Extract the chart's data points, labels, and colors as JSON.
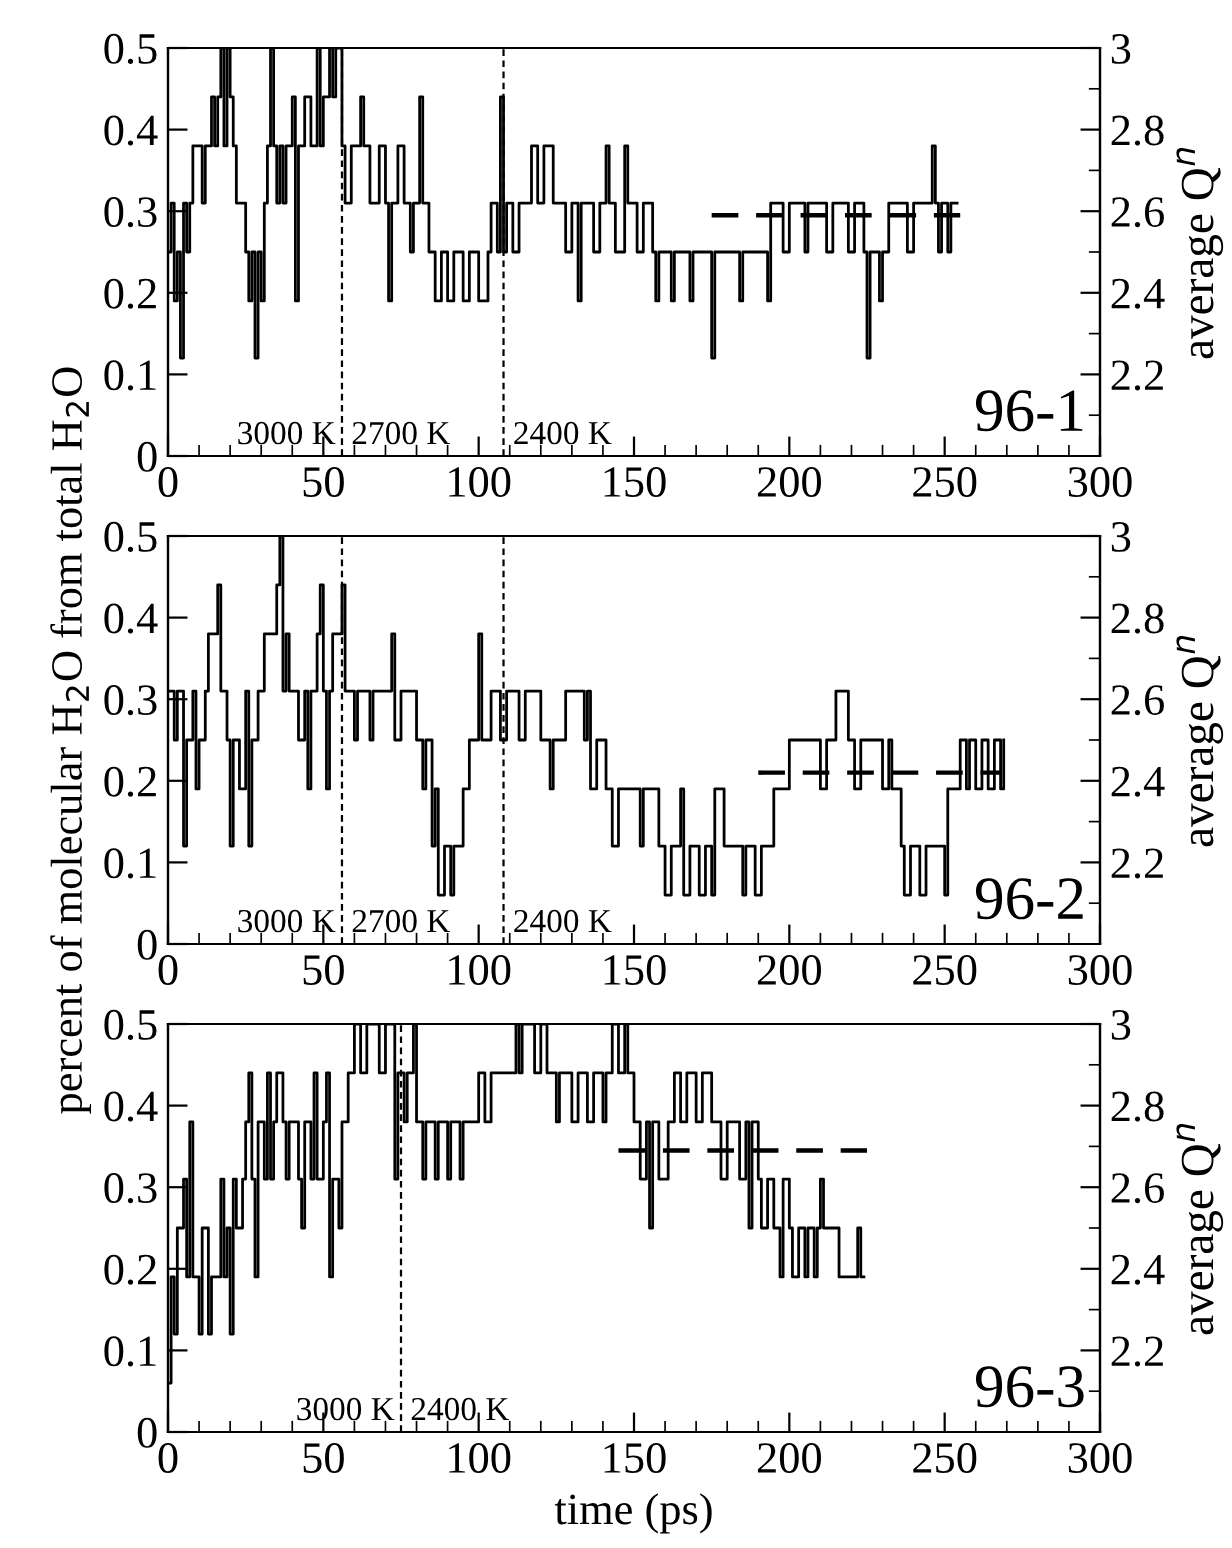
{
  "chart_data": [
    {
      "type": "step",
      "xlim": [
        0,
        300
      ],
      "xticks": [
        0,
        50,
        100,
        150,
        200,
        250,
        300
      ],
      "ylim": [
        0,
        0.5
      ],
      "yticks": [
        0,
        0.1,
        0.2,
        0.3,
        0.4,
        0.5
      ],
      "y2lim": [
        2,
        3
      ],
      "y2ticks": [
        2.2,
        2.4,
        2.6,
        2.8,
        3
      ],
      "y2label": "average Q$^{n}$",
      "grid": false,
      "legend": false,
      "series": [
        {
          "color": "#000000",
          "x": [
            0,
            1,
            2,
            3,
            4,
            5,
            6,
            7,
            8,
            11,
            12,
            14,
            15,
            16,
            17,
            18,
            19,
            20,
            21,
            22,
            24,
            25,
            26,
            27,
            28,
            29,
            30,
            31,
            32,
            33,
            34,
            35,
            36,
            37,
            38,
            40,
            41,
            42,
            44,
            46,
            48,
            49,
            50,
            52,
            53,
            54,
            56,
            57,
            59,
            62,
            63,
            65,
            68,
            70,
            71,
            72,
            74,
            76,
            78,
            79,
            81,
            82,
            84,
            86,
            88,
            90,
            92,
            95,
            97,
            100,
            103,
            104,
            106,
            107,
            108,
            109,
            111,
            113,
            117,
            119,
            121,
            124,
            128,
            130,
            132,
            133,
            137,
            139,
            141,
            142,
            144,
            147,
            148,
            151,
            153,
            156,
            157,
            158,
            162,
            163,
            168,
            169,
            175,
            176,
            184,
            185,
            193,
            194,
            198,
            200,
            205,
            206,
            212,
            214,
            219,
            221,
            224,
            225,
            226,
            229,
            230,
            232,
            238,
            240,
            246,
            247,
            248,
            249,
            251,
            252,
            254
          ],
          "values": [
            0.25,
            0.31,
            0.19,
            0.25,
            0.12,
            0.31,
            0.25,
            0.31,
            0.38,
            0.31,
            0.38,
            0.44,
            0.38,
            0.44,
            0.5,
            0.38,
            0.5,
            0.44,
            0.38,
            0.31,
            0.31,
            0.25,
            0.19,
            0.25,
            0.12,
            0.25,
            0.19,
            0.31,
            0.38,
            0.5,
            0.38,
            0.31,
            0.38,
            0.31,
            0.38,
            0.44,
            0.19,
            0.38,
            0.44,
            0.38,
            0.5,
            0.38,
            0.44,
            0.5,
            0.44,
            0.5,
            0.38,
            0.31,
            0.38,
            0.44,
            0.38,
            0.31,
            0.38,
            0.31,
            0.19,
            0.31,
            0.38,
            0.31,
            0.25,
            0.31,
            0.44,
            0.31,
            0.25,
            0.19,
            0.25,
            0.19,
            0.25,
            0.19,
            0.25,
            0.19,
            0.25,
            0.31,
            0.25,
            0.44,
            0.25,
            0.31,
            0.25,
            0.31,
            0.38,
            0.31,
            0.38,
            0.31,
            0.25,
            0.31,
            0.19,
            0.31,
            0.25,
            0.31,
            0.38,
            0.31,
            0.25,
            0.38,
            0.31,
            0.25,
            0.31,
            0.25,
            0.19,
            0.25,
            0.19,
            0.25,
            0.19,
            0.25,
            0.12,
            0.25,
            0.19,
            0.25,
            0.19,
            0.31,
            0.25,
            0.31,
            0.25,
            0.31,
            0.25,
            0.31,
            0.25,
            0.31,
            0.25,
            0.12,
            0.25,
            0.19,
            0.25,
            0.31,
            0.25,
            0.31,
            0.38,
            0.31,
            0.25,
            0.31,
            0.25,
            0.31,
            0.31
          ]
        },
        {
          "type": "line",
          "axis": "y2",
          "line_style": "dashed",
          "color": "#000000",
          "x": [
            175,
            255
          ],
          "values": [
            2.59,
            2.59
          ]
        }
      ],
      "ref_lines": [
        {
          "axis": "x",
          "value": 56,
          "line_style": "dashed",
          "color": "#000000"
        },
        {
          "axis": "x",
          "value": 108,
          "line_style": "dashed",
          "color": "#000000"
        }
      ],
      "annotations": [
        "3000 K",
        "2700 K",
        "2400 K",
        "96-1"
      ]
    },
    {
      "type": "step",
      "xlim": [
        0,
        300
      ],
      "xticks": [
        0,
        50,
        100,
        150,
        200,
        250,
        300
      ],
      "ylim": [
        0,
        0.5
      ],
      "yticks": [
        0,
        0.1,
        0.2,
        0.3,
        0.4,
        0.5
      ],
      "y2lim": [
        2,
        3
      ],
      "y2ticks": [
        2.2,
        2.4,
        2.6,
        2.8,
        3
      ],
      "ylabel": "percent of molecular H$_{2}$O from total H$_{2}$O",
      "y2label": "average Q$^{n}$",
      "grid": false,
      "legend": false,
      "series": [
        {
          "color": "#000000",
          "x": [
            0,
            2,
            3,
            5,
            6,
            8,
            9,
            10,
            12,
            13,
            16,
            17,
            19,
            20,
            21,
            23,
            25,
            26,
            27,
            29,
            31,
            35,
            36,
            37,
            38,
            39,
            42,
            44,
            45,
            46,
            48,
            49,
            50,
            51,
            52,
            53,
            56,
            57,
            60,
            61,
            65,
            66,
            72,
            73,
            75,
            80,
            82,
            83,
            85,
            86,
            87,
            89,
            91,
            92,
            95,
            97,
            100,
            101,
            104,
            107,
            109,
            113,
            115,
            120,
            123,
            124,
            128,
            134,
            135,
            136,
            138,
            141,
            143,
            145,
            152,
            153,
            158,
            160,
            162,
            165,
            166,
            168,
            171,
            173,
            175,
            176,
            179,
            185,
            186,
            189,
            191,
            195,
            200,
            210,
            212,
            215,
            219,
            221,
            223,
            230,
            232,
            233,
            236,
            237,
            239,
            242,
            244,
            250,
            251,
            255,
            257,
            258,
            260,
            262,
            264,
            266,
            268,
            269
          ],
          "values": [
            0.31,
            0.25,
            0.31,
            0.12,
            0.25,
            0.31,
            0.19,
            0.25,
            0.31,
            0.38,
            0.44,
            0.31,
            0.25,
            0.12,
            0.25,
            0.19,
            0.31,
            0.12,
            0.25,
            0.31,
            0.38,
            0.44,
            0.5,
            0.31,
            0.38,
            0.31,
            0.25,
            0.31,
            0.19,
            0.31,
            0.38,
            0.44,
            0.31,
            0.19,
            0.31,
            0.38,
            0.44,
            0.31,
            0.25,
            0.31,
            0.25,
            0.31,
            0.38,
            0.25,
            0.31,
            0.25,
            0.19,
            0.25,
            0.12,
            0.19,
            0.06,
            0.12,
            0.06,
            0.12,
            0.19,
            0.25,
            0.38,
            0.25,
            0.31,
            0.25,
            0.31,
            0.25,
            0.31,
            0.25,
            0.19,
            0.25,
            0.31,
            0.25,
            0.31,
            0.19,
            0.25,
            0.19,
            0.12,
            0.19,
            0.12,
            0.19,
            0.12,
            0.06,
            0.12,
            0.19,
            0.06,
            0.12,
            0.06,
            0.12,
            0.06,
            0.19,
            0.12,
            0.06,
            0.12,
            0.06,
            0.12,
            0.19,
            0.25,
            0.19,
            0.25,
            0.31,
            0.25,
            0.19,
            0.25,
            0.19,
            0.25,
            0.19,
            0.12,
            0.06,
            0.12,
            0.06,
            0.12,
            0.06,
            0.19,
            0.25,
            0.19,
            0.25,
            0.19,
            0.25,
            0.19,
            0.25,
            0.19,
            0.25
          ]
        },
        {
          "type": "line",
          "axis": "y2",
          "line_style": "dashed",
          "color": "#000000",
          "x": [
            190,
            268
          ],
          "values": [
            2.42,
            2.42
          ]
        }
      ],
      "ref_lines": [
        {
          "axis": "x",
          "value": 56,
          "line_style": "dashed",
          "color": "#000000"
        },
        {
          "axis": "x",
          "value": 108,
          "line_style": "dashed",
          "color": "#000000"
        }
      ],
      "annotations": [
        "3000 K",
        "2700 K",
        "2400 K",
        "96-2"
      ]
    },
    {
      "type": "step",
      "xlim": [
        0,
        300
      ],
      "xticks": [
        0,
        50,
        100,
        150,
        200,
        250,
        300
      ],
      "ylim": [
        0,
        0.5
      ],
      "yticks": [
        0,
        0.1,
        0.2,
        0.3,
        0.4,
        0.5
      ],
      "y2lim": [
        2,
        3
      ],
      "y2ticks": [
        2.2,
        2.4,
        2.6,
        2.8,
        3
      ],
      "xlabel": "time (ps)",
      "y2label": "average Q$^{n}$",
      "grid": false,
      "legend": false,
      "series": [
        {
          "color": "#000000",
          "x": [
            0,
            1,
            2,
            3,
            5,
            6,
            7,
            8,
            10,
            11,
            13,
            14,
            17,
            18,
            19,
            20,
            21,
            22,
            24,
            25,
            26,
            27,
            28,
            29,
            31,
            32,
            33,
            34,
            35,
            37,
            38,
            39,
            42,
            43,
            44,
            46,
            47,
            48,
            50,
            51,
            52,
            53,
            55,
            56,
            58,
            60,
            62,
            64,
            68,
            70,
            73,
            74,
            76,
            77,
            79,
            80,
            82,
            83,
            86,
            87,
            90,
            91,
            94,
            95,
            100,
            102,
            104,
            112,
            113,
            114,
            118,
            120,
            122,
            125,
            126,
            130,
            132,
            135,
            137,
            140,
            141,
            143,
            145,
            147,
            148,
            150,
            152,
            154,
            155,
            156,
            158,
            161,
            163,
            165,
            167,
            170,
            172,
            175,
            178,
            180,
            184,
            186,
            187,
            188,
            190,
            191,
            193,
            195,
            197,
            198,
            200,
            201,
            203,
            205,
            206,
            208,
            209,
            210,
            211,
            216,
            222,
            223,
            224
          ],
          "values": [
            0.06,
            0.19,
            0.12,
            0.25,
            0.31,
            0.19,
            0.38,
            0.19,
            0.12,
            0.25,
            0.12,
            0.19,
            0.31,
            0.19,
            0.25,
            0.12,
            0.31,
            0.25,
            0.31,
            0.38,
            0.44,
            0.31,
            0.19,
            0.38,
            0.31,
            0.44,
            0.31,
            0.38,
            0.44,
            0.38,
            0.31,
            0.38,
            0.31,
            0.25,
            0.38,
            0.31,
            0.44,
            0.31,
            0.38,
            0.44,
            0.19,
            0.31,
            0.25,
            0.38,
            0.44,
            0.5,
            0.44,
            0.5,
            0.44,
            0.5,
            0.31,
            0.44,
            0.38,
            0.44,
            0.5,
            0.38,
            0.31,
            0.38,
            0.31,
            0.38,
            0.31,
            0.38,
            0.31,
            0.38,
            0.44,
            0.38,
            0.44,
            0.5,
            0.44,
            0.5,
            0.44,
            0.5,
            0.44,
            0.38,
            0.44,
            0.38,
            0.44,
            0.38,
            0.44,
            0.38,
            0.44,
            0.5,
            0.44,
            0.5,
            0.44,
            0.38,
            0.31,
            0.38,
            0.25,
            0.38,
            0.31,
            0.38,
            0.44,
            0.38,
            0.44,
            0.38,
            0.44,
            0.38,
            0.31,
            0.38,
            0.31,
            0.38,
            0.25,
            0.38,
            0.31,
            0.25,
            0.31,
            0.25,
            0.19,
            0.31,
            0.25,
            0.19,
            0.25,
            0.19,
            0.25,
            0.19,
            0.25,
            0.31,
            0.25,
            0.19,
            0.25,
            0.19,
            0.19
          ]
        },
        {
          "type": "line",
          "axis": "y2",
          "line_style": "dashed",
          "color": "#000000",
          "x": [
            145,
            225
          ],
          "values": [
            2.69,
            2.69
          ]
        }
      ],
      "ref_lines": [
        {
          "axis": "x",
          "value": 75,
          "line_style": "dashed",
          "color": "#000000"
        }
      ],
      "annotations": [
        "3000 K",
        "2400 K",
        "96-3"
      ]
    }
  ]
}
